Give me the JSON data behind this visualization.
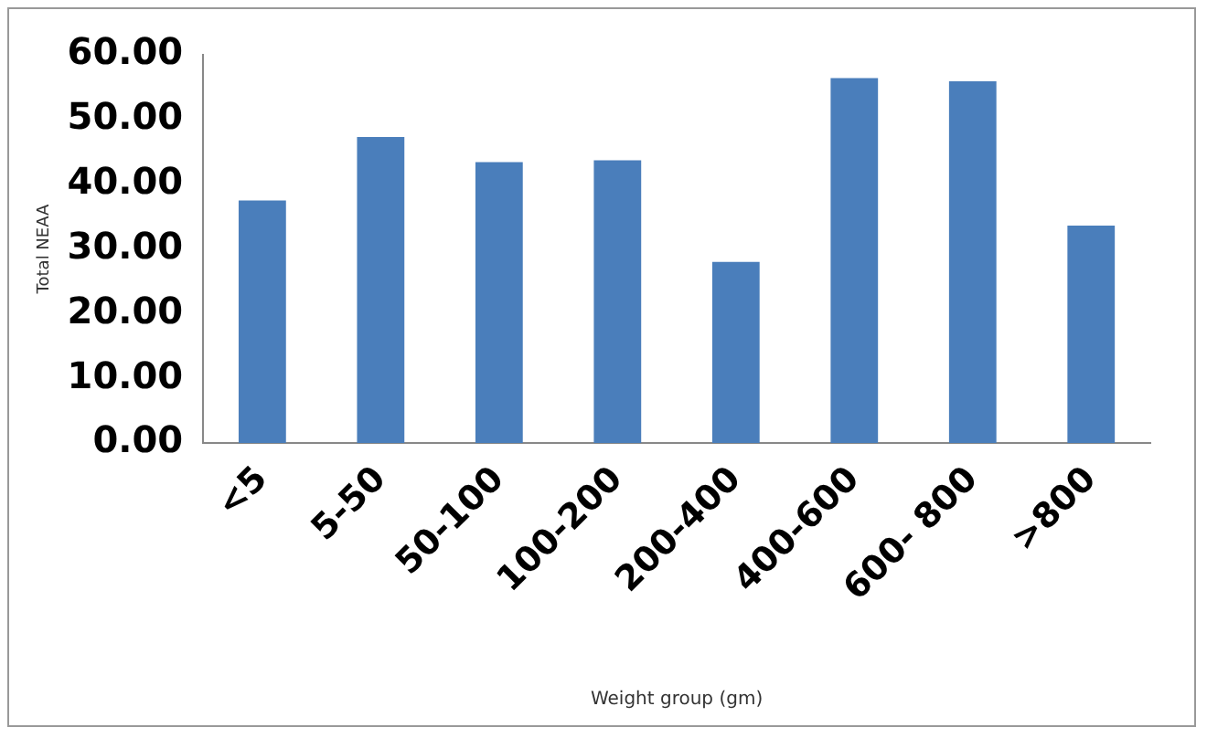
{
  "chart_data": {
    "type": "bar",
    "xlabel": "Weight group (gm)",
    "ylabel": "Total NEAA",
    "categories": [
      "<5",
      "5-50",
      "50-100",
      "100-200",
      "200-400",
      "400-600",
      "600- 800",
      ">800"
    ],
    "values": [
      37.5,
      47.3,
      43.4,
      43.7,
      28.0,
      56.4,
      55.9,
      33.6
    ],
    "color": "#4a7ebb",
    "ylim": [
      0,
      60
    ],
    "yticks": [
      {
        "value": 0,
        "label": "0.00"
      },
      {
        "value": 10,
        "label": "10.00"
      },
      {
        "value": 20,
        "label": "20.00"
      },
      {
        "value": 30,
        "label": "30.00"
      },
      {
        "value": 40,
        "label": "40.00"
      },
      {
        "value": 50,
        "label": "50.00"
      },
      {
        "value": 60,
        "label": "60.00"
      }
    ],
    "grid": false,
    "legend": false
  }
}
